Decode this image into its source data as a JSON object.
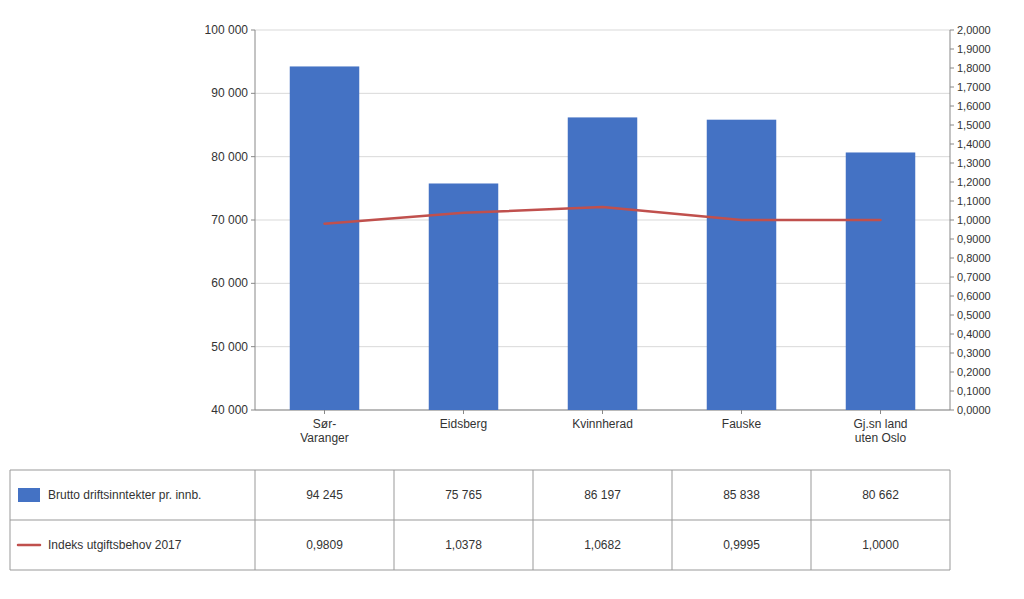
{
  "chart_data": {
    "type": "bar",
    "categories": [
      "Sør-\nVaranger",
      "Eidsberg",
      "Kvinnherad",
      "Fauske",
      "Gj.sn land\nuten Oslo"
    ],
    "series": [
      {
        "name": "Brutto driftsinntekter pr. innb.",
        "type": "bar",
        "color": "#4472C4",
        "values": [
          94245,
          75765,
          86197,
          85838,
          80662
        ],
        "value_labels": [
          "94 245",
          "75 765",
          "86 197",
          "85 838",
          "80 662"
        ]
      },
      {
        "name": "Indeks utgiftsbehov 2017",
        "type": "line",
        "axis": "y2",
        "color": "#C0504D",
        "values": [
          0.9809,
          1.0378,
          1.0682,
          0.9995,
          1.0
        ],
        "value_labels": [
          "0,9809",
          "1,0378",
          "1,0682",
          "0,9995",
          "1,0000"
        ]
      }
    ],
    "ylim": [
      40000,
      100000
    ],
    "yticks": [
      {
        "value": 40000,
        "label": "40 000"
      },
      {
        "value": 50000,
        "label": "50 000"
      },
      {
        "value": 60000,
        "label": "60 000"
      },
      {
        "value": 70000,
        "label": "70 000"
      },
      {
        "value": 80000,
        "label": "80 000"
      },
      {
        "value": 90000,
        "label": "90 000"
      },
      {
        "value": 100000,
        "label": "100 000"
      }
    ],
    "y2lim": [
      0.0,
      2.0
    ],
    "y2ticks": [
      {
        "value": 0.0,
        "label": "0,0000"
      },
      {
        "value": 0.1,
        "label": "0,1000"
      },
      {
        "value": 0.2,
        "label": "0,2000"
      },
      {
        "value": 0.3,
        "label": "0,3000"
      },
      {
        "value": 0.4,
        "label": "0,4000"
      },
      {
        "value": 0.5,
        "label": "0,5000"
      },
      {
        "value": 0.6,
        "label": "0,6000"
      },
      {
        "value": 0.7,
        "label": "0,7000"
      },
      {
        "value": 0.8,
        "label": "0,8000"
      },
      {
        "value": 0.9,
        "label": "0,9000"
      },
      {
        "value": 1.0,
        "label": "1,0000"
      },
      {
        "value": 1.1,
        "label": "1,1000"
      },
      {
        "value": 1.2,
        "label": "1,2000"
      },
      {
        "value": 1.3,
        "label": "1,3000"
      },
      {
        "value": 1.4,
        "label": "1,4000"
      },
      {
        "value": 1.5,
        "label": "1,5000"
      },
      {
        "value": 1.6,
        "label": "1,6000"
      },
      {
        "value": 1.7,
        "label": "1,7000"
      },
      {
        "value": 1.8,
        "label": "1,8000"
      },
      {
        "value": 1.9,
        "label": "1,9000"
      },
      {
        "value": 2.0,
        "label": "2,0000"
      }
    ],
    "grid": true
  }
}
